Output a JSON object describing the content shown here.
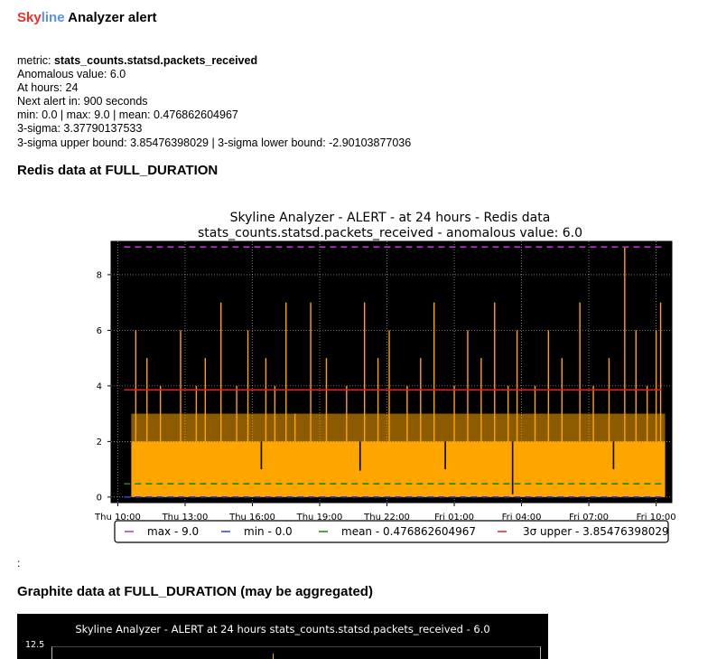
{
  "email": {
    "title_part1": "Sky",
    "title_part2": "line",
    "title_part3": " Analyzer alert",
    "details": {
      "metric_label": "metric: ",
      "metric_value": "stats_counts.statsd.packets_received",
      "anomalous": "Anomalous value: 6.0",
      "at_hours": "At hours: 24",
      "next_alert": "Next alert in: 900 seconds",
      "min_max_mean": "min: 0.0 | max: 9.0 | mean: 0.476862604967",
      "sigma": "3-sigma: 3.37790137533",
      "bounds": "3-sigma upper bound: 3.85476398029 | 3-sigma lower bound: -2.90103877036"
    },
    "redis_heading": "Redis data at FULL_DURATION",
    "colon": ":",
    "graphite_heading": "Graphite data at FULL_DURATION (may be aggregated)"
  },
  "graphite": {
    "title": "Skyline Analyzer - ALERT at 24 hours stats_counts.statsd.packets_received - 6.0",
    "ytick": "12.5"
  },
  "chart_data": {
    "type": "line",
    "title": "Skyline Analyzer - ALERT - at 24 hours - Redis data",
    "subtitle": "stats_counts.statsd.packets_received - anomalous value: 6.0",
    "xlabel": "",
    "ylabel": "",
    "x_ticks": [
      "Thu 10:00",
      "Thu 13:00",
      "Thu 16:00",
      "Thu 19:00",
      "Thu 22:00",
      "Fri 01:00",
      "Fri 04:00",
      "Fri 07:00",
      "Fri 10:00"
    ],
    "x_range_hours": [
      -0.3,
      24.7
    ],
    "series_start_hour": 0.6,
    "series_end_hour": 24.4,
    "ylim": [
      -0.2,
      9.2
    ],
    "y_ticks": [
      0,
      2,
      4,
      6,
      8
    ],
    "grid": true,
    "background": "#000000",
    "series_color": "#ffa500",
    "baseline": 2,
    "series": [
      {
        "name": "stats_counts.statsd.packets_received",
        "points": [
          [
            0.8,
            6
          ],
          [
            1.3,
            5
          ],
          [
            1.9,
            4
          ],
          [
            2.8,
            6
          ],
          [
            3.5,
            4
          ],
          [
            3.9,
            5
          ],
          [
            4.6,
            7
          ],
          [
            5.3,
            4
          ],
          [
            5.8,
            6
          ],
          [
            6.6,
            5
          ],
          [
            7.0,
            4
          ],
          [
            7.5,
            7
          ],
          [
            7.9,
            3
          ],
          [
            8.6,
            7
          ],
          [
            9.3,
            5
          ],
          [
            10.2,
            4
          ],
          [
            11.0,
            7
          ],
          [
            11.6,
            5
          ],
          [
            12.1,
            6
          ],
          [
            12.9,
            4
          ],
          [
            13.5,
            5
          ],
          [
            14.1,
            7
          ],
          [
            15.0,
            4
          ],
          [
            15.6,
            6
          ],
          [
            16.2,
            5
          ],
          [
            16.8,
            7
          ],
          [
            17.4,
            4
          ],
          [
            17.8,
            6
          ],
          [
            18.6,
            4
          ],
          [
            19.2,
            6
          ],
          [
            19.8,
            5
          ],
          [
            20.6,
            7
          ],
          [
            21.2,
            4
          ],
          [
            21.9,
            5
          ],
          [
            22.6,
            9
          ],
          [
            23.1,
            6
          ],
          [
            23.6,
            4
          ],
          [
            24.0,
            6
          ],
          [
            24.2,
            7
          ]
        ],
        "dips": [
          [
            10.8,
            0.95
          ],
          [
            17.6,
            0.1
          ],
          [
            6.4,
            1.0
          ],
          [
            14.6,
            1.0
          ],
          [
            22.1,
            1.0
          ]
        ]
      }
    ],
    "reference_lines": [
      {
        "name": "max - 9.0",
        "value": 9.0,
        "color": "#bb33cc",
        "dash": "dashed"
      },
      {
        "name": "min - 0.0",
        "value": 0.0,
        "color": "#2244dd",
        "dash": "dashed"
      },
      {
        "name": "mean - 0.476862604967",
        "value": 0.476862604967,
        "color": "#118811",
        "dash": "dashed"
      },
      {
        "name": "3σ upper - 3.85476398029",
        "value": 3.85476398029,
        "color": "#dd2222",
        "dash": "solid"
      }
    ],
    "legend_placement": "bottom"
  }
}
